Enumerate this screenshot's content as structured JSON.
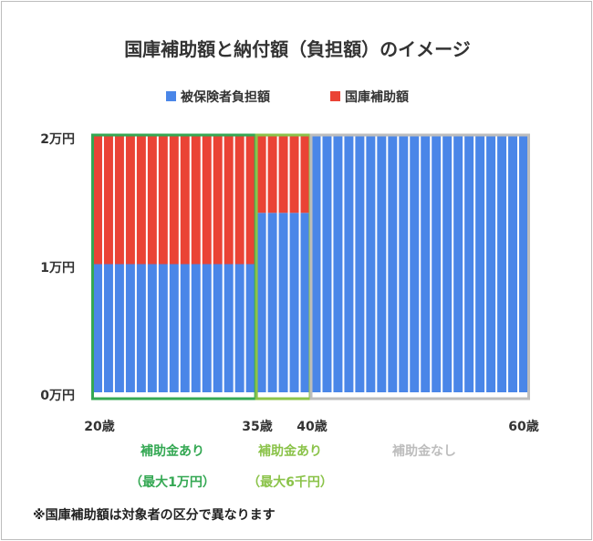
{
  "chart_data": {
    "type": "bar",
    "title": "国庫補助額と納付額（負担額）のイメージ",
    "series": [
      {
        "name": "被保険者負担額",
        "color": "#4a86e8"
      },
      {
        "name": "国庫補助額",
        "color": "#ea4335"
      }
    ],
    "x_ticks": [
      "20歳",
      "35歳",
      "40歳",
      "60歳"
    ],
    "y_ticks": [
      "0万円",
      "1万円",
      "2万円"
    ],
    "ylim": [
      0,
      20000
    ],
    "total": 20000,
    "segments": [
      {
        "count": 15,
        "from_age": 20,
        "insured": 10000,
        "subsidy": 10000
      },
      {
        "count": 5,
        "from_age": 35,
        "insured": 14000,
        "subsidy": 6000
      },
      {
        "count": 20,
        "from_age": 40,
        "insured": 20000,
        "subsidy": 0
      }
    ],
    "groups": [
      {
        "label": "補助金あり",
        "sublabel": "（最大1万円）",
        "color": "#34a853"
      },
      {
        "label": "補助金あり",
        "sublabel": "（最大6千円）",
        "color": "#8bc34a"
      },
      {
        "label": "補助金なし",
        "sublabel": "",
        "color": "#bdbdbd"
      }
    ],
    "footnote": "※国庫補助額は対象者の区分で異なります",
    "legend_position": "top"
  }
}
